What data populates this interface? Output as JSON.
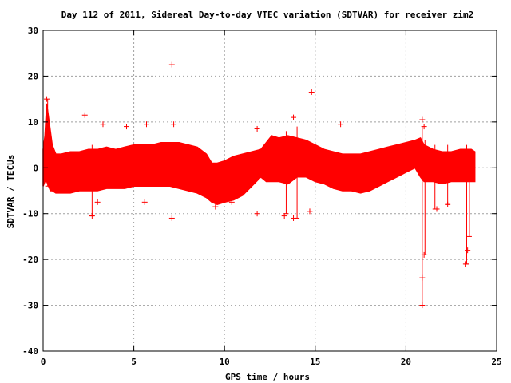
{
  "chart_data": {
    "type": "scatter",
    "title": "Day 112 of 2011, Sidereal Day-to-day VTEC variation (SDTVAR) for receiver zim2",
    "xlabel": "GPS time / hours",
    "ylabel": "SDTVAR / TECUs",
    "xlim": [
      0,
      25
    ],
    "ylim": [
      -40,
      30
    ],
    "xticks": [
      0,
      5,
      10,
      15,
      20,
      25
    ],
    "yticks": [
      -40,
      -30,
      -20,
      -10,
      0,
      10,
      20,
      30
    ],
    "xtick_labels": [
      "0",
      "5",
      "10",
      "15",
      "20",
      "25"
    ],
    "ytick_labels": [
      "-40",
      "-30",
      "-20",
      "-10",
      "0",
      "10",
      "20",
      "30"
    ],
    "grid": true,
    "marker": "plus",
    "error_bars": true,
    "color": "#ff0000",
    "series": [
      {
        "x": [
          0.0,
          0.1,
          0.2,
          0.3,
          0.4,
          0.5,
          0.7,
          1.0,
          1.5,
          2.0,
          2.5,
          3.0,
          3.5,
          4.0,
          4.5,
          5.0,
          5.5,
          6.0,
          6.5,
          7.0,
          7.5,
          8.0,
          8.5,
          9.0,
          9.3,
          9.6,
          10.0,
          10.5,
          11.0,
          11.5,
          12.0,
          12.3,
          12.6,
          13.0,
          13.5,
          14.0,
          14.5,
          15.0,
          15.5,
          16.0,
          16.5,
          17.0,
          17.5,
          18.0,
          18.5,
          19.0,
          19.5,
          20.0,
          20.5,
          20.8,
          21.0,
          21.5,
          22.0,
          22.5,
          23.0,
          23.3,
          23.6,
          23.8
        ],
        "upper": [
          4,
          7,
          14,
          11,
          8,
          5,
          3,
          3,
          3.5,
          3.5,
          4,
          4,
          4.5,
          4,
          4.5,
          5,
          5,
          5,
          5.5,
          5.5,
          5.5,
          5,
          4.5,
          3,
          1,
          1,
          1.5,
          2.5,
          3,
          3.5,
          4,
          5.5,
          7,
          6.5,
          7,
          6.5,
          6,
          5,
          4,
          3.5,
          3,
          3,
          3,
          3.5,
          4,
          4.5,
          5,
          5.5,
          6,
          6.5,
          5,
          4,
          3.5,
          3.5,
          4,
          4,
          4,
          3.5
        ],
        "lower": [
          -4,
          -3,
          -3,
          -4,
          -5,
          -5,
          -5.5,
          -5.5,
          -5.5,
          -5,
          -5,
          -5,
          -4.5,
          -4.5,
          -4.5,
          -4,
          -4,
          -4,
          -4,
          -4,
          -4.5,
          -5,
          -5.5,
          -6.5,
          -7.5,
          -8,
          -7.5,
          -7,
          -6,
          -4,
          -2,
          -3,
          -3,
          -3,
          -3.5,
          -2,
          -2,
          -3,
          -3.5,
          -4.5,
          -5,
          -5,
          -5.5,
          -5,
          -4,
          -3,
          -2,
          -1,
          0,
          -2,
          -3,
          -3,
          -3.5,
          -3,
          -3,
          -3,
          -3,
          -3
        ]
      }
    ],
    "outliers": [
      {
        "x": 7.1,
        "y": 22.5
      },
      {
        "x": 14.8,
        "y": 16.5
      },
      {
        "x": 0.2,
        "y": 15
      },
      {
        "x": 2.3,
        "y": 11.5
      },
      {
        "x": 7.2,
        "y": 9.5
      },
      {
        "x": 16.4,
        "y": 9.5
      },
      {
        "x": 11.8,
        "y": 8.5
      },
      {
        "x": 13.8,
        "y": 11
      },
      {
        "x": 3.3,
        "y": 9.5
      },
      {
        "x": 4.6,
        "y": 9
      },
      {
        "x": 5.7,
        "y": 9.5
      },
      {
        "x": 2.7,
        "y": -10.5
      },
      {
        "x": 3.0,
        "y": -7.5
      },
      {
        "x": 5.6,
        "y": -7.5
      },
      {
        "x": 7.1,
        "y": -11
      },
      {
        "x": 9.5,
        "y": -8.5
      },
      {
        "x": 10.4,
        "y": -7.5
      },
      {
        "x": 11.8,
        "y": -10
      },
      {
        "x": 13.3,
        "y": -10.5
      },
      {
        "x": 13.8,
        "y": -11
      },
      {
        "x": 14.7,
        "y": -9.5
      },
      {
        "x": 20.9,
        "y": -30
      },
      {
        "x": 20.9,
        "y": -24
      },
      {
        "x": 21.0,
        "y": -19
      },
      {
        "x": 23.3,
        "y": -21
      },
      {
        "x": 23.4,
        "y": -18
      },
      {
        "x": 21.7,
        "y": -9
      },
      {
        "x": 22.3,
        "y": -8
      },
      {
        "x": 20.9,
        "y": 10.5
      },
      {
        "x": 21.0,
        "y": 9
      }
    ],
    "spikes": [
      {
        "x": 20.9,
        "y_max": 9,
        "y_min": -30
      },
      {
        "x": 21.05,
        "y_max": 6,
        "y_min": -19
      },
      {
        "x": 23.35,
        "y_max": 5,
        "y_min": -21
      },
      {
        "x": 23.5,
        "y_max": 4,
        "y_min": -15
      },
      {
        "x": 0.25,
        "y_max": 15,
        "y_min": -4
      },
      {
        "x": 14.0,
        "y_max": 9,
        "y_min": -11
      },
      {
        "x": 13.4,
        "y_max": 8,
        "y_min": -10
      },
      {
        "x": 2.7,
        "y_max": 5,
        "y_min": -10.5
      },
      {
        "x": 21.6,
        "y_max": 5,
        "y_min": -9
      },
      {
        "x": 22.3,
        "y_max": 5,
        "y_min": -8
      }
    ]
  }
}
